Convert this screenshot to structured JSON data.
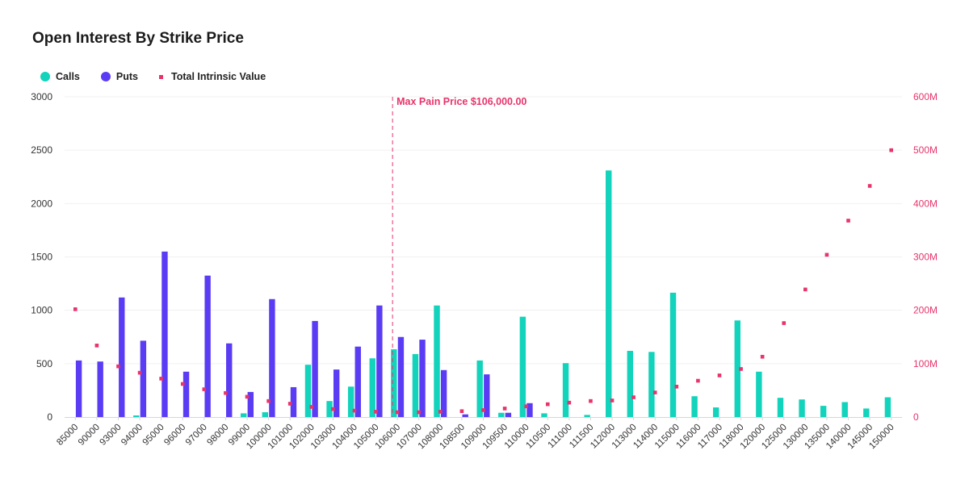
{
  "title": "Open Interest By Strike Price",
  "legend": {
    "calls": "Calls",
    "puts": "Puts",
    "intrinsic": "Total Intrinsic Value"
  },
  "colors": {
    "calls": "#12d3bb",
    "puts": "#5b3cf5",
    "intrinsic": "#e8336b",
    "grid": "#f1f1f1"
  },
  "max_pain": {
    "label": "Max Pain Price $106,000.00",
    "strike": "106000"
  },
  "chart_data": {
    "type": "bar",
    "title": "Open Interest By Strike Price",
    "categories": [
      "85000",
      "90000",
      "93000",
      "94000",
      "95000",
      "96000",
      "97000",
      "98000",
      "99000",
      "100000",
      "101000",
      "102000",
      "103000",
      "104000",
      "105000",
      "106000",
      "107000",
      "108000",
      "108500",
      "109000",
      "109500",
      "110000",
      "110500",
      "111000",
      "111500",
      "112000",
      "113000",
      "114000",
      "115000",
      "116000",
      "117000",
      "118000",
      "120000",
      "125000",
      "130000",
      "135000",
      "140000",
      "145000",
      "150000"
    ],
    "series": [
      {
        "name": "Calls",
        "type": "bar",
        "axis": "left",
        "values": [
          0,
          0,
          0,
          15,
          0,
          0,
          0,
          0,
          35,
          45,
          0,
          490,
          150,
          285,
          550,
          635,
          590,
          1045,
          0,
          530,
          40,
          940,
          35,
          505,
          20,
          2310,
          620,
          610,
          1165,
          195,
          90,
          905,
          425,
          180,
          165,
          105,
          140,
          80,
          185
        ]
      },
      {
        "name": "Puts",
        "type": "bar",
        "axis": "left",
        "values": [
          530,
          520,
          1120,
          715,
          1550,
          425,
          1325,
          690,
          235,
          1105,
          280,
          900,
          445,
          660,
          1045,
          750,
          725,
          440,
          25,
          400,
          40,
          130,
          0,
          0,
          0,
          0,
          0,
          0,
          0,
          0,
          0,
          0,
          0,
          0,
          0,
          0,
          0,
          0,
          0
        ]
      },
      {
        "name": "Total Intrinsic Value",
        "type": "scatter",
        "axis": "right",
        "values": [
          202,
          134,
          95,
          83,
          72,
          62,
          52,
          45,
          38,
          30,
          25,
          19,
          15,
          12,
          10,
          9,
          9,
          10,
          11,
          13,
          16,
          20,
          24,
          27,
          30,
          31,
          37,
          46,
          57,
          68,
          78,
          90,
          113,
          176,
          239,
          304,
          368,
          433,
          500
        ]
      }
    ],
    "left_axis": {
      "min": 0,
      "max": 3000,
      "ticks": [
        0,
        500,
        1000,
        1500,
        2000,
        2500,
        3000
      ]
    },
    "right_axis": {
      "min": 0,
      "max": 600,
      "ticks": [
        "0",
        "100M",
        "200M",
        "300M",
        "400M",
        "500M",
        "600M"
      ]
    },
    "xlabel": "",
    "ylabel": "",
    "ylabel_right": "",
    "grid": true,
    "legend_position": "top-left"
  }
}
